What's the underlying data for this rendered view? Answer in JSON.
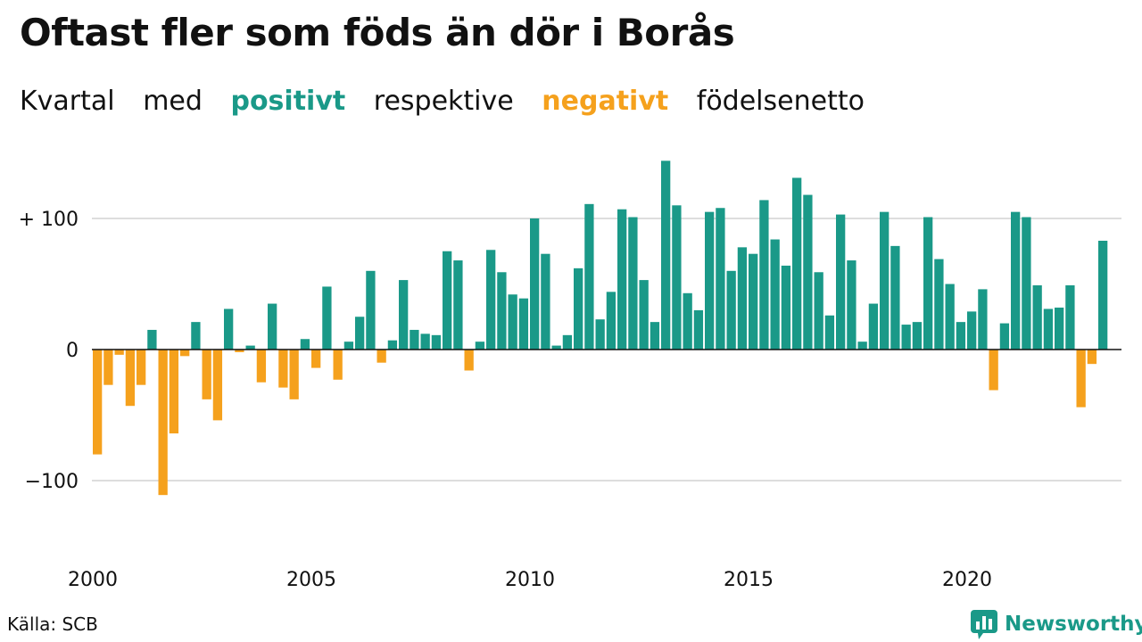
{
  "title": "Oftast fler som föds än dör i Borås",
  "subtitle": {
    "w1": "Kvartal",
    "w2": "med",
    "positive_word": "positivt",
    "w3": "respektive",
    "negative_word": "negativt",
    "w4": "födelsenetto"
  },
  "colors": {
    "positive": "#1a9988",
    "negative": "#f5a11d",
    "grid": "#dddddd",
    "zero": "#111111"
  },
  "source": "Källa: SCB",
  "brand": {
    "name": "Newsworthy",
    "icon": "newsworthy-logo-icon"
  },
  "chart_data": {
    "type": "bar",
    "title": "Oftast fler som föds än dör i Borås",
    "xlabel": "",
    "ylabel": "",
    "ylim": [
      -140,
      150
    ],
    "x_start": 2000,
    "periods_per_year": 4,
    "y_ticks": [
      {
        "value": 100,
        "label": "+ 100"
      },
      {
        "value": 0,
        "label": "0"
      },
      {
        "value": -100,
        "label": "−100"
      }
    ],
    "x_ticks": [
      {
        "value": 2000,
        "label": "2000"
      },
      {
        "value": 2005,
        "label": "2005"
      },
      {
        "value": 2010,
        "label": "2010"
      },
      {
        "value": 2015,
        "label": "2015"
      },
      {
        "value": 2020,
        "label": "2020"
      }
    ],
    "grid": true,
    "values": [
      -80,
      -27,
      -4,
      -43,
      -27,
      15,
      -111,
      -64,
      -5,
      21,
      -38,
      -54,
      31,
      -2,
      3,
      -25,
      35,
      -29,
      -38,
      8,
      -14,
      48,
      -23,
      6,
      25,
      60,
      -10,
      7,
      53,
      15,
      12,
      11,
      75,
      68,
      -16,
      6,
      76,
      59,
      42,
      39,
      100,
      73,
      3,
      11,
      62,
      111,
      23,
      44,
      107,
      101,
      53,
      21,
      144,
      110,
      43,
      30,
      105,
      108,
      60,
      78,
      73,
      114,
      84,
      64,
      131,
      118,
      59,
      26,
      103,
      68,
      6,
      35,
      105,
      79,
      19,
      21,
      101,
      69,
      50,
      21,
      29,
      46,
      -31,
      20,
      105,
      101,
      49,
      31,
      32,
      49,
      -44,
      -11,
      83
    ]
  }
}
